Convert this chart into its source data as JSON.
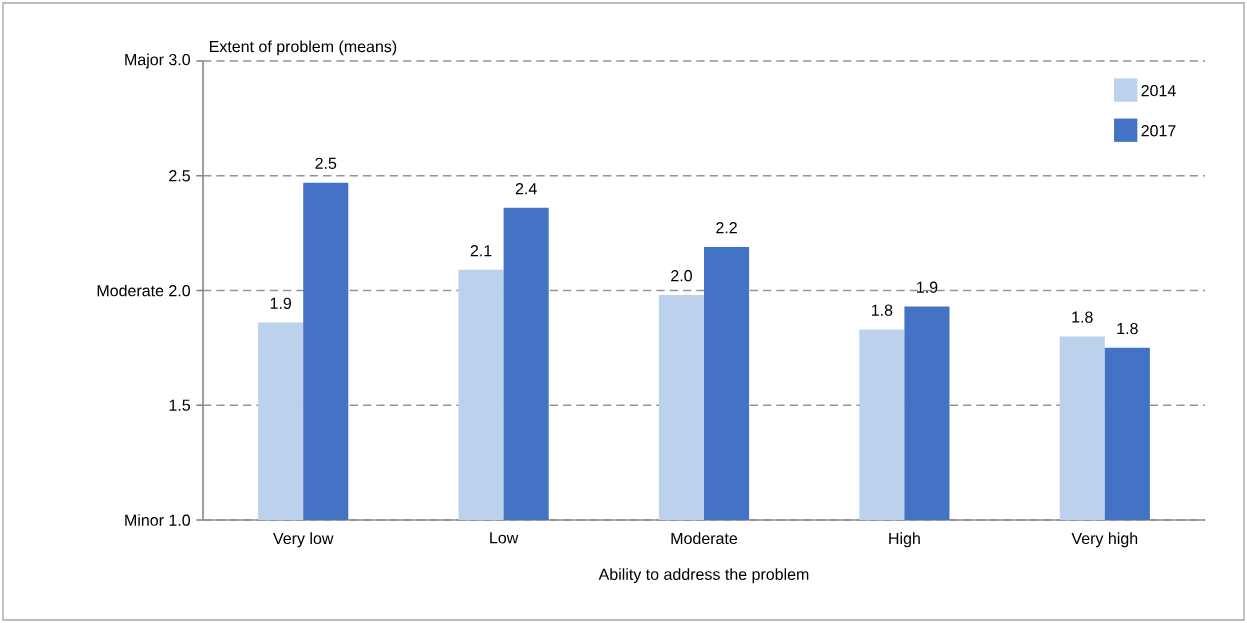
{
  "chart_data": {
    "type": "bar",
    "ylabel": "Extent of problem (means)",
    "xlabel": "Ability to address the problem",
    "categories": [
      "Very low",
      "Low",
      "Moderate",
      "High",
      "Very high"
    ],
    "series": [
      {
        "name": "2014",
        "color": "#bcd1ec",
        "values": [
          1.86,
          2.09,
          1.98,
          1.83,
          1.8
        ],
        "value_labels": [
          "1.9",
          "2.1",
          "2.0",
          "1.8",
          "1.8"
        ]
      },
      {
        "name": "2017",
        "color": "#4472c4",
        "values": [
          2.47,
          2.36,
          2.19,
          1.93,
          1.75
        ],
        "value_labels": [
          "2.5",
          "2.4",
          "2.2",
          "1.9",
          "1.8"
        ]
      }
    ],
    "ylim": [
      1.0,
      3.0
    ],
    "yticks": [
      {
        "value": 1.0,
        "label": "Minor 1.0"
      },
      {
        "value": 1.5,
        "label": "1.5"
      },
      {
        "value": 2.0,
        "label": "Moderate 2.0"
      },
      {
        "value": 2.5,
        "label": "2.5"
      },
      {
        "value": 3.0,
        "label": "Major 3.0"
      }
    ],
    "grid": "y",
    "line_style": "dashed",
    "legend": "top right"
  }
}
